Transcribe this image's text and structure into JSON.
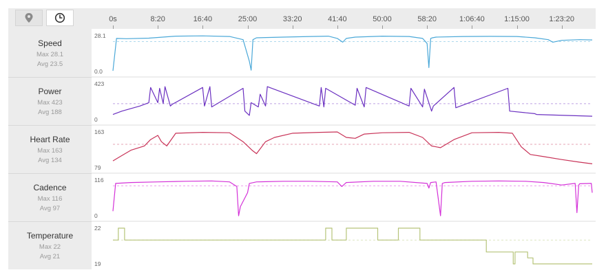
{
  "toolbar": {
    "map_icon": "map-pin-icon",
    "time_icon": "clock-icon",
    "active": "time"
  },
  "time_axis": {
    "ticks": [
      "0s",
      "8:20",
      "16:40",
      "25:00",
      "33:20",
      "41:40",
      "50:00",
      "58:20",
      "1:06:40",
      "1:15:00",
      "1:23:20"
    ],
    "tick_seconds": [
      0,
      500,
      1000,
      1500,
      2000,
      2500,
      3000,
      3500,
      4000,
      4500,
      5000
    ],
    "duration_seconds": 5340
  },
  "metrics": [
    {
      "name": "Speed",
      "max_text": "Max 28.1",
      "avg_text": "Avg 23.5",
      "ymax_label": "28.1",
      "ymin_label": "0.0"
    },
    {
      "name": "Power",
      "max_text": "Max 423",
      "avg_text": "Avg 188",
      "ymax_label": "423",
      "ymin_label": "0"
    },
    {
      "name": "Heart Rate",
      "max_text": "Max 163",
      "avg_text": "Avg 134",
      "ymax_label": "163",
      "ymin_label": "79"
    },
    {
      "name": "Cadence",
      "max_text": "Max 116",
      "avg_text": "Avg 97",
      "ymax_label": "116",
      "ymin_label": "0"
    },
    {
      "name": "Temperature",
      "max_text": "Max 22",
      "avg_text": "Avg 21",
      "ymax_label": "22",
      "ymin_label": "19"
    }
  ],
  "chart_data": [
    {
      "type": "line",
      "title": "Speed",
      "color": "#4aa8d8",
      "ylim": [
        0,
        28.1
      ],
      "average": 23.5,
      "x": [
        0,
        40,
        150,
        400,
        700,
        1000,
        1300,
        1450,
        1520,
        1540,
        1560,
        1600,
        1900,
        2200,
        2400,
        2500,
        2560,
        2600,
        2700,
        3000,
        3300,
        3450,
        3500,
        3520,
        3540,
        3560,
        3600,
        3900,
        4200,
        4500,
        4700,
        4850,
        4900,
        5000,
        5200,
        5340
      ],
      "y": [
        0.5,
        26,
        25.8,
        26.2,
        27.8,
        28,
        27.5,
        25,
        8,
        1,
        25,
        26.5,
        27,
        27.5,
        27.8,
        26,
        23,
        26,
        27,
        27.8,
        27.5,
        26,
        22,
        3,
        26,
        26.5,
        27,
        27.5,
        27.6,
        27.5,
        26.5,
        25,
        23,
        24.5,
        25,
        24.8
      ]
    },
    {
      "type": "line",
      "title": "Power",
      "color": "#6a2fc0",
      "ylim": [
        0,
        423
      ],
      "average": 188,
      "x": [
        0,
        100,
        300,
        400,
        420,
        500,
        520,
        560,
        580,
        640,
        660,
        1000,
        1020,
        1080,
        1100,
        1450,
        1470,
        1520,
        1540,
        1620,
        1640,
        1700,
        1720,
        2300,
        2320,
        2350,
        2370,
        2700,
        2720,
        2800,
        2820,
        3300,
        3320,
        3450,
        3470,
        3550,
        3570,
        3800,
        3820,
        4400,
        4420,
        4700,
        4720,
        5340
      ],
      "y": [
        60,
        100,
        160,
        200,
        380,
        200,
        370,
        190,
        390,
        160,
        180,
        380,
        160,
        390,
        150,
        370,
        100,
        50,
        200,
        150,
        300,
        160,
        390,
        160,
        380,
        150,
        370,
        170,
        370,
        150,
        380,
        160,
        370,
        150,
        360,
        100,
        160,
        380,
        140,
        370,
        100,
        70,
        60,
        40
      ]
    },
    {
      "type": "line",
      "title": "Heart Rate",
      "color": "#c83257",
      "ylim": [
        79,
        163
      ],
      "average": 134,
      "x": [
        0,
        80,
        200,
        350,
        420,
        500,
        540,
        600,
        700,
        1000,
        1300,
        1450,
        1550,
        1600,
        1700,
        1800,
        2000,
        2300,
        2500,
        2600,
        2700,
        2800,
        3000,
        3300,
        3450,
        3550,
        3650,
        3800,
        4000,
        4300,
        4450,
        4550,
        4650,
        4800,
        5000,
        5200,
        5340
      ],
      "y": [
        95,
        105,
        120,
        130,
        145,
        155,
        140,
        130,
        160,
        162,
        161,
        140,
        120,
        112,
        140,
        150,
        160,
        162,
        163,
        150,
        148,
        158,
        161,
        162,
        150,
        130,
        126,
        145,
        161,
        162,
        160,
        128,
        110,
        105,
        98,
        92,
        88
      ]
    },
    {
      "type": "line",
      "title": "Cadence",
      "color": "#d430d8",
      "ylim": [
        0,
        116
      ],
      "average": 97,
      "x": [
        0,
        30,
        200,
        500,
        800,
        1100,
        1300,
        1380,
        1400,
        1420,
        1500,
        1520,
        1600,
        1900,
        2200,
        2500,
        2550,
        2600,
        2900,
        3200,
        3500,
        3520,
        3540,
        3600,
        3650,
        3670,
        3700,
        4000,
        4300,
        4600,
        4800,
        5000,
        5150,
        5170,
        5190,
        5200,
        5330,
        5340
      ],
      "y": [
        15,
        105,
        108,
        110,
        112,
        113,
        110,
        95,
        0,
        30,
        75,
        105,
        110,
        112,
        112,
        110,
        95,
        108,
        112,
        112,
        105,
        90,
        108,
        110,
        0,
        105,
        108,
        112,
        113,
        112,
        108,
        100,
        105,
        10,
        100,
        104,
        105,
        75
      ]
    },
    {
      "type": "line",
      "title": "Temperature",
      "color": "#b6c479",
      "ylim": [
        19,
        22
      ],
      "average": 21,
      "x": [
        0,
        60,
        60,
        130,
        130,
        2370,
        2370,
        2440,
        2440,
        2600,
        2600,
        2950,
        2950,
        3180,
        3180,
        3420,
        3420,
        4160,
        4160,
        4460,
        4460,
        4480,
        4480,
        4620,
        4620,
        4680,
        4680,
        5340
      ],
      "y": [
        21,
        21,
        22,
        22,
        21,
        21,
        22,
        22,
        21,
        21,
        22,
        22,
        21,
        21,
        22,
        22,
        21,
        21,
        20,
        20,
        19,
        19,
        20,
        20,
        19.5,
        19.5,
        19,
        19
      ]
    }
  ]
}
